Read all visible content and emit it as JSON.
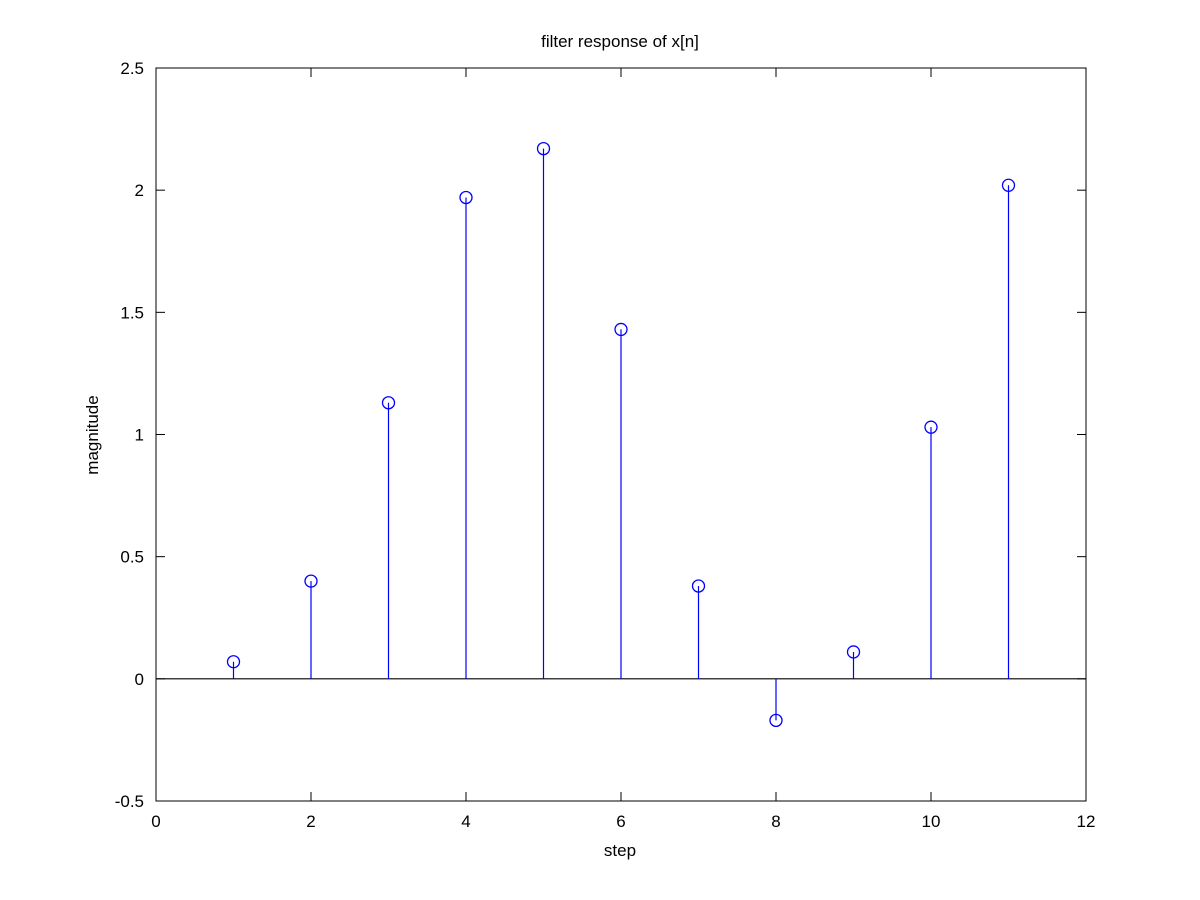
{
  "chart_data": {
    "type": "stem",
    "title": "filter response of x[n]",
    "xlabel": "step",
    "ylabel": "magnitude",
    "xlim": [
      0,
      12
    ],
    "ylim": [
      -0.5,
      2.5
    ],
    "xticks": [
      0,
      2,
      4,
      6,
      8,
      10,
      12
    ],
    "yticks": [
      -0.5,
      0,
      0.5,
      1,
      1.5,
      2,
      2.5
    ],
    "xtick_labels": [
      "0",
      "2",
      "4",
      "6",
      "8",
      "10",
      "12"
    ],
    "ytick_labels": [
      "-0.5",
      "0",
      "0.5",
      "1",
      "1.5",
      "2",
      "2.5"
    ],
    "grid": false,
    "baseline": 0,
    "series": [
      {
        "color": "#0000ff",
        "marker": "circle-open",
        "x": [
          1,
          2,
          3,
          4,
          5,
          6,
          7,
          8,
          9,
          10,
          11
        ],
        "y": [
          0.07,
          0.4,
          1.13,
          1.97,
          2.17,
          1.43,
          0.38,
          -0.17,
          0.11,
          1.03,
          2.02
        ]
      }
    ]
  }
}
